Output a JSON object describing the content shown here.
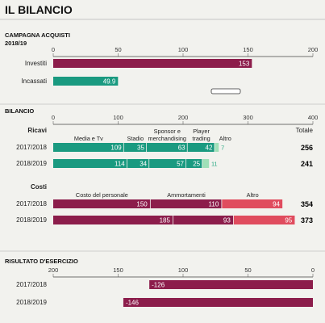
{
  "title": "IL BILANCIO",
  "colors": {
    "maroon": "#8c1d4b",
    "teal": "#1a9a80",
    "pink": "#e04c5e",
    "lightgreen": "#9fe0b8",
    "altro_text": "#21a77f"
  },
  "chart_data": [
    {
      "type": "bar",
      "title_lines": [
        "CAMPAGNA ACQUISTI",
        "2018/19"
      ],
      "ticks": [
        0,
        50,
        100,
        150,
        200
      ],
      "xlim": [
        0,
        200
      ],
      "series": [
        {
          "name": "Investiti",
          "value": 153,
          "label": "153",
          "color": "#8c1d4b"
        },
        {
          "name": "Incassati",
          "value": 49.9,
          "label": "49.9",
          "color": "#1a9a80"
        }
      ]
    },
    {
      "type": "bar",
      "title": "BILANCIO",
      "ticks": [
        0,
        100,
        200,
        300,
        400
      ],
      "xlim": [
        0,
        400
      ],
      "total_header": "Totale",
      "ricavi": {
        "header": "Ricavi",
        "components": [
          "Media e Tv",
          "Stadio",
          "Sponsor e merchandising",
          "Player trading",
          "Altro"
        ],
        "component_lines": [
          [
            "Media e Tv"
          ],
          [
            "Stadio"
          ],
          [
            "Sponsor e",
            "merchandising"
          ],
          [
            "Player",
            "trading"
          ],
          [
            "Altro"
          ]
        ],
        "rows": [
          {
            "year": "2017/2018",
            "values": [
              109,
              35,
              63,
              42,
              7
            ],
            "total": "256"
          },
          {
            "year": "2018/2019",
            "values": [
              114,
              34,
              57,
              25,
              11
            ],
            "total": "241"
          }
        ]
      },
      "costi": {
        "header": "Costi",
        "components": [
          "Costo del personale",
          "Ammortamenti",
          "Altro"
        ],
        "rows": [
          {
            "year": "2017/2018",
            "values": [
              150,
              110,
              94
            ],
            "total": "354"
          },
          {
            "year": "2018/2019",
            "values": [
              185,
              93,
              95
            ],
            "total": "373"
          }
        ]
      }
    },
    {
      "type": "bar",
      "title": "RISULTATO D'ESERCIZIO",
      "ticks": [
        200,
        150,
        100,
        50,
        0
      ],
      "xlim": [
        -200,
        0
      ],
      "rows": [
        {
          "year": "2017/2018",
          "value": -126,
          "label": "-126"
        },
        {
          "year": "2018/2019",
          "value": -146,
          "label": "-146"
        }
      ]
    }
  ]
}
